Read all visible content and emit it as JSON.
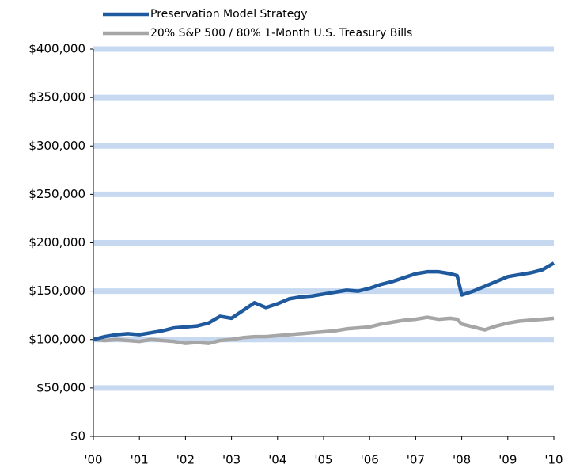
{
  "chart_data": {
    "type": "line",
    "x": [
      2000,
      2000.25,
      2000.5,
      2000.75,
      2001,
      2001.25,
      2001.5,
      2001.75,
      2002,
      2002.25,
      2002.5,
      2002.75,
      2003,
      2003.25,
      2003.5,
      2003.75,
      2004,
      2004.25,
      2004.5,
      2004.75,
      2005,
      2005.25,
      2005.5,
      2005.75,
      2006,
      2006.25,
      2006.5,
      2006.75,
      2007,
      2007.25,
      2007.5,
      2007.75,
      2007.9,
      2008,
      2008.25,
      2008.5,
      2008.75,
      2009,
      2009.25,
      2009.5,
      2009.75,
      2010
    ],
    "series": [
      {
        "name": "Preservation Model Strategy",
        "color": "#1f5a9e",
        "values": [
          100000,
          103000,
          105000,
          106000,
          105000,
          107000,
          109000,
          112000,
          113000,
          114000,
          117000,
          124000,
          122000,
          130000,
          138000,
          133000,
          137000,
          142000,
          144000,
          145000,
          147000,
          149000,
          151000,
          150000,
          153000,
          157000,
          160000,
          164000,
          168000,
          170000,
          170000,
          168000,
          166000,
          146000,
          150000,
          155000,
          160000,
          165000,
          167000,
          169000,
          172000,
          179000
        ]
      },
      {
        "name": "20% S&P 500 / 80% 1-Month U.S. Treasury Bills",
        "color": "#a6a6a6",
        "values": [
          100000,
          99000,
          100000,
          99000,
          98000,
          100000,
          99000,
          98000,
          96000,
          97000,
          96000,
          99000,
          100000,
          102000,
          103000,
          103000,
          104000,
          105000,
          106000,
          107000,
          108000,
          109000,
          111000,
          112000,
          113000,
          116000,
          118000,
          120000,
          121000,
          123000,
          121000,
          122000,
          121000,
          116000,
          113000,
          110000,
          114000,
          117000,
          119000,
          120000,
          121000,
          122000
        ]
      }
    ],
    "xlim": [
      2000,
      2010
    ],
    "xticks": [
      {
        "value": 2000,
        "label": "'00"
      },
      {
        "value": 2001,
        "label": "'01"
      },
      {
        "value": 2002,
        "label": "'02"
      },
      {
        "value": 2003,
        "label": "'03"
      },
      {
        "value": 2004,
        "label": "'04"
      },
      {
        "value": 2005,
        "label": "'05"
      },
      {
        "value": 2006,
        "label": "'06"
      },
      {
        "value": 2007,
        "label": "'07"
      },
      {
        "value": 2008,
        "label": "'08"
      },
      {
        "value": 2009,
        "label": "'09"
      },
      {
        "value": 2010,
        "label": "'10"
      }
    ],
    "ylim": [
      0,
      400000
    ],
    "yticks": [
      {
        "value": 0,
        "label": "$0"
      },
      {
        "value": 50000,
        "label": "$50,000"
      },
      {
        "value": 100000,
        "label": "$100,000"
      },
      {
        "value": 150000,
        "label": "$150,000"
      },
      {
        "value": 200000,
        "label": "$200,000"
      },
      {
        "value": 250000,
        "label": "$250,000"
      },
      {
        "value": 300000,
        "label": "$300,000"
      },
      {
        "value": 350000,
        "label": "$350,000"
      },
      {
        "value": 400000,
        "label": "$400,000"
      }
    ],
    "grid": true,
    "grid_color": "#c6d9f1"
  }
}
